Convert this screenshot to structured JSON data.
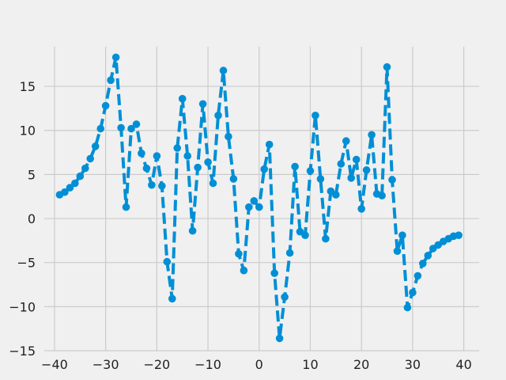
{
  "chart_data": {
    "type": "line",
    "title": "",
    "xlabel": "",
    "ylabel": "",
    "xlim": [
      -42,
      43
    ],
    "ylim": [
      -15,
      19.5
    ],
    "grid": true,
    "x_ticks": [
      -40,
      -30,
      -20,
      -10,
      0,
      10,
      20,
      30,
      40
    ],
    "x_tick_labels": [
      "−40",
      "−30",
      "−20",
      "−10",
      "0",
      "10",
      "20",
      "30",
      "40"
    ],
    "y_ticks": [
      -15,
      -10,
      -5,
      0,
      5,
      10,
      15
    ],
    "y_tick_labels": [
      "−15",
      "−10",
      "−5",
      "0",
      "5",
      "10",
      "15"
    ],
    "series": [
      {
        "color": "#008fd5",
        "line_style": "dashed",
        "marker": "circle",
        "x": [
          -39.0,
          -38.0,
          -37.0,
          -36.0,
          -35.0,
          -34.0,
          -33.0,
          -32.0,
          -31.0,
          -30.0,
          -29.0,
          -28.0,
          -27.0,
          -26.0,
          -25.0,
          -24.0,
          -23.0,
          -22.0,
          -21.0,
          -20.0,
          -19.0,
          -18.0,
          -17.0,
          -16.0,
          -15.0,
          -14.0,
          -13.0,
          -12.0,
          -11.0,
          -10.0,
          -9.0,
          -8.0,
          -7.0,
          -6.0,
          -5.0,
          -4.0,
          -3.0,
          -2.0,
          -1.0,
          0.0,
          1.0,
          2.0,
          3.0,
          4.0,
          5.0,
          6.0,
          7.0,
          8.0,
          9.0,
          10.0,
          11.0,
          12.0,
          13.0,
          14.0,
          15.0,
          16.0,
          17.0,
          18.0,
          19.0,
          20.0,
          21.0,
          22.0,
          23.0,
          24.0,
          25.0,
          26.0,
          27.0,
          28.0,
          29.0,
          30.0,
          31.0,
          32.0,
          33.0,
          34.0,
          35.0,
          36.0,
          37.0,
          38.0,
          39.0
        ],
        "y": [
          2.7,
          3.0,
          3.5,
          4.0,
          4.8,
          5.7,
          6.8,
          8.2,
          10.2,
          12.8,
          15.7,
          18.3,
          10.3,
          1.3,
          10.2,
          10.7,
          7.4,
          5.7,
          3.8,
          7.1,
          3.7,
          -4.9,
          -9.1,
          8.0,
          13.6,
          7.1,
          -1.4,
          5.8,
          13.0,
          6.4,
          4.0,
          11.7,
          16.8,
          9.3,
          4.5,
          -4.0,
          -5.9,
          1.3,
          2.0,
          1.3,
          5.6,
          8.4,
          -6.2,
          -13.6,
          -8.9,
          -3.9,
          5.9,
          -1.5,
          -1.9,
          5.4,
          11.7,
          4.5,
          -2.3,
          3.1,
          2.7,
          6.2,
          8.8,
          4.6,
          6.7,
          1.1,
          5.5,
          9.5,
          2.8,
          2.6,
          17.2,
          4.4,
          -3.7,
          -1.9,
          -10.1,
          -8.4,
          -6.5,
          -5.1,
          -4.2,
          -3.4,
          -3.0,
          -2.6,
          -2.3,
          -2.0,
          -1.9
        ]
      }
    ]
  }
}
